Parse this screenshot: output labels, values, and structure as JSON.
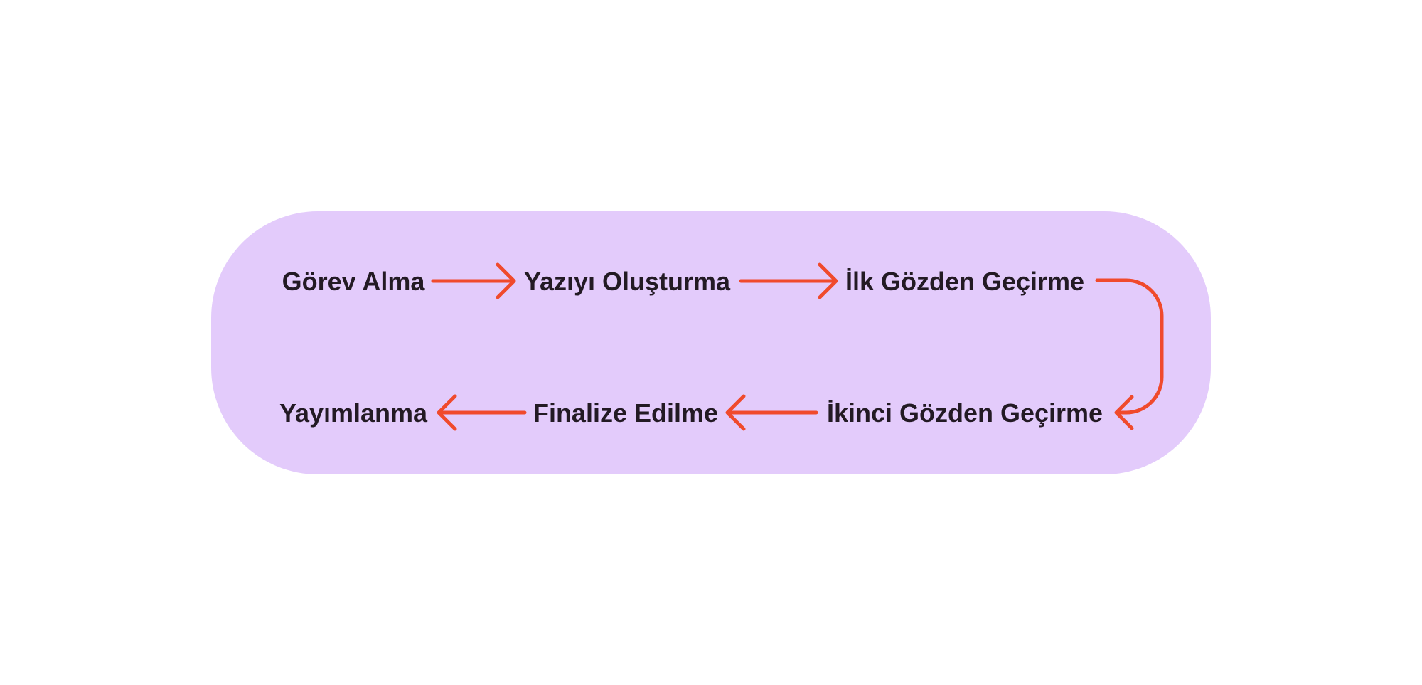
{
  "colors": {
    "panel": "#e3cbfb",
    "arrow": "#f04a2c",
    "text": "#231a24"
  },
  "steps": [
    {
      "label": "Görev Alma"
    },
    {
      "label": "Yazıyı Oluşturma"
    },
    {
      "label": "İlk Gözden Geçirme"
    },
    {
      "label": "İkinci Gözden Geçirme"
    },
    {
      "label": "Finalize Edilme"
    },
    {
      "label": "Yayımlanma"
    }
  ]
}
